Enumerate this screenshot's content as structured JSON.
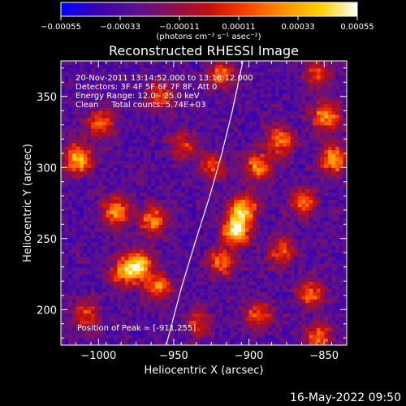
{
  "chart_data": {
    "type": "heatmap",
    "title": "Reconstructed RHESSI Image",
    "xlabel": "Heliocentric X (arcsec)",
    "ylabel": "Heliocentric Y (arcsec)",
    "xlim": [
      -1025,
      -835
    ],
    "ylim": [
      175,
      375
    ],
    "x_ticks": [
      {
        "value": -1000,
        "label": "−1000"
      },
      {
        "value": -950,
        "label": "−950"
      },
      {
        "value": -900,
        "label": "−900"
      },
      {
        "value": -850,
        "label": "−850"
      }
    ],
    "y_ticks": [
      {
        "value": 200,
        "label": "200"
      },
      {
        "value": 250,
        "label": "250"
      },
      {
        "value": 300,
        "label": "300"
      },
      {
        "value": 350,
        "label": "350"
      }
    ],
    "colorbar": {
      "range": [
        -0.00055,
        0.00055
      ],
      "ticks": [
        {
          "value": -0.00055,
          "label": "−0.00055"
        },
        {
          "value": -0.00033,
          "label": "−0.00033"
        },
        {
          "value": -0.00011,
          "label": "−0.00011"
        },
        {
          "value": 0.00011,
          "label": "0.00011"
        },
        {
          "value": 0.00033,
          "label": "0.00033"
        },
        {
          "value": 0.00055,
          "label": "0.00055"
        }
      ],
      "units": "(photons cm⁻² s⁻¹ asec⁻²)",
      "colors": [
        "#0000ff",
        "#3a00b0",
        "#5a1090",
        "#8a1050",
        "#c01010",
        "#ff4000",
        "#ff9000",
        "#ffd000",
        "#ffffff"
      ]
    },
    "annotations": [
      "20-Nov-2011 13:14:52.000 to 13:18:12.000",
      "Detectors: 3F 4F 5F 6F 7F 8F, Att 0",
      "Energy Range: 12.0 - 25.0 keV",
      "Clean     Total counts: 5.74E+03"
    ],
    "peak_label": "Position of Peak = [-911,255]",
    "peak": {
      "x": -911,
      "y": 255
    },
    "limb_curve": [
      {
        "x": -955,
        "y": 175
      },
      {
        "x": -945,
        "y": 215
      },
      {
        "x": -935,
        "y": 250
      },
      {
        "x": -926,
        "y": 280
      },
      {
        "x": -918,
        "y": 310
      },
      {
        "x": -911,
        "y": 340
      },
      {
        "x": -904,
        "y": 375
      }
    ],
    "hot_spots": [
      {
        "x": -1015,
        "y": 305,
        "intensity": 0.85
      },
      {
        "x": -1000,
        "y": 330,
        "intensity": 0.6
      },
      {
        "x": -990,
        "y": 268,
        "intensity": 0.75
      },
      {
        "x": -965,
        "y": 262,
        "intensity": 0.7
      },
      {
        "x": -975,
        "y": 230,
        "intensity": 0.9
      },
      {
        "x": -962,
        "y": 215,
        "intensity": 0.65
      },
      {
        "x": -985,
        "y": 225,
        "intensity": 0.55
      },
      {
        "x": -910,
        "y": 255,
        "intensity": 1.0
      },
      {
        "x": -905,
        "y": 270,
        "intensity": 0.8
      },
      {
        "x": -920,
        "y": 232,
        "intensity": 0.6
      },
      {
        "x": -895,
        "y": 300,
        "intensity": 0.7
      },
      {
        "x": -880,
        "y": 318,
        "intensity": 0.65
      },
      {
        "x": -850,
        "y": 335,
        "intensity": 0.75
      },
      {
        "x": -845,
        "y": 305,
        "intensity": 0.8
      },
      {
        "x": -865,
        "y": 275,
        "intensity": 0.6
      },
      {
        "x": -880,
        "y": 240,
        "intensity": 0.55
      },
      {
        "x": -860,
        "y": 210,
        "intensity": 0.6
      },
      {
        "x": -895,
        "y": 195,
        "intensity": 0.55
      },
      {
        "x": -925,
        "y": 300,
        "intensity": 0.5
      },
      {
        "x": -945,
        "y": 315,
        "intensity": 0.45
      },
      {
        "x": -960,
        "y": 350,
        "intensity": 0.55
      },
      {
        "x": -920,
        "y": 365,
        "intensity": 0.6
      },
      {
        "x": -855,
        "y": 365,
        "intensity": 0.5
      },
      {
        "x": -1010,
        "y": 195,
        "intensity": 0.5
      },
      {
        "x": -935,
        "y": 190,
        "intensity": 0.45
      },
      {
        "x": -855,
        "y": 180,
        "intensity": 0.6
      }
    ]
  },
  "footer": {
    "timestamp": "16-May-2022 09:50"
  }
}
